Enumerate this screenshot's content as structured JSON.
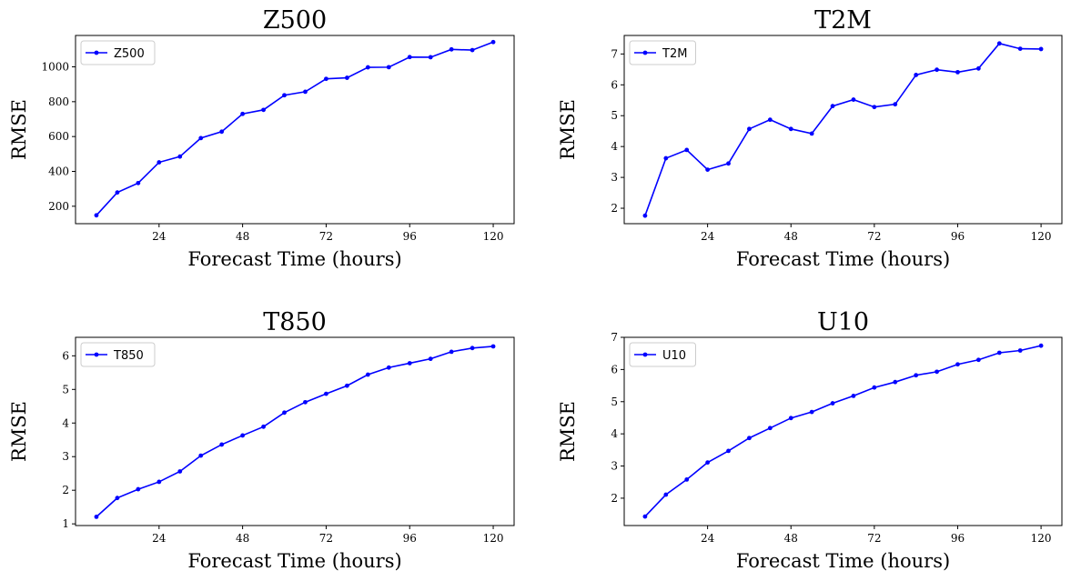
{
  "figure": {
    "line_color": "#0000ff",
    "marker": "dot"
  },
  "chart_data": [
    {
      "type": "line",
      "title": "Z500",
      "xlabel": "Forecast Time (hours)",
      "ylabel": "RMSE",
      "xlim": [
        0,
        126
      ],
      "ylim": [
        100,
        1180
      ],
      "xticks": [
        24,
        48,
        72,
        96,
        120
      ],
      "yticks": [
        200,
        400,
        600,
        800,
        1000
      ],
      "legend": "upper-left",
      "grid": false,
      "series": [
        {
          "name": "Z500",
          "x": [
            6,
            12,
            18,
            24,
            30,
            36,
            42,
            48,
            54,
            60,
            66,
            72,
            78,
            84,
            90,
            96,
            102,
            108,
            114,
            120
          ],
          "y": [
            148,
            279,
            333,
            452,
            485,
            591,
            628,
            730,
            753,
            837,
            857,
            931,
            937,
            997,
            998,
            1056,
            1055,
            1100,
            1096,
            1142
          ]
        }
      ]
    },
    {
      "type": "line",
      "title": "T2M",
      "xlabel": "Forecast Time (hours)",
      "ylabel": "RMSE",
      "xlim": [
        0,
        126
      ],
      "ylim": [
        1.5,
        7.6
      ],
      "xticks": [
        24,
        48,
        72,
        96,
        120
      ],
      "yticks": [
        2,
        3,
        4,
        5,
        6,
        7
      ],
      "legend": "upper-left",
      "grid": false,
      "series": [
        {
          "name": "T2M",
          "x": [
            6,
            12,
            18,
            24,
            30,
            36,
            42,
            48,
            54,
            60,
            66,
            72,
            78,
            84,
            90,
            96,
            102,
            108,
            114,
            120
          ],
          "y": [
            1.76,
            3.62,
            3.89,
            3.25,
            3.45,
            4.57,
            4.87,
            4.57,
            4.42,
            5.31,
            5.52,
            5.28,
            5.37,
            6.32,
            6.49,
            6.41,
            6.53,
            7.34,
            7.17,
            7.16
          ]
        }
      ]
    },
    {
      "type": "line",
      "title": "T850",
      "xlabel": "Forecast Time (hours)",
      "ylabel": "RMSE",
      "xlim": [
        0,
        126
      ],
      "ylim": [
        0.95,
        6.55
      ],
      "xticks": [
        24,
        48,
        72,
        96,
        120
      ],
      "yticks": [
        1,
        2,
        3,
        4,
        5,
        6
      ],
      "legend": "upper-left",
      "grid": false,
      "series": [
        {
          "name": "T850",
          "x": [
            6,
            12,
            18,
            24,
            30,
            36,
            42,
            48,
            54,
            60,
            66,
            72,
            78,
            84,
            90,
            96,
            102,
            108,
            114,
            120
          ],
          "y": [
            1.21,
            1.77,
            2.03,
            2.25,
            2.56,
            3.03,
            3.36,
            3.63,
            3.89,
            4.31,
            4.62,
            4.87,
            5.11,
            5.44,
            5.65,
            5.78,
            5.91,
            6.12,
            6.23,
            6.28
          ]
        }
      ]
    },
    {
      "type": "line",
      "title": "U10",
      "xlabel": "Forecast Time (hours)",
      "ylabel": "RMSE",
      "xlim": [
        0,
        126
      ],
      "ylim": [
        1.15,
        7.0
      ],
      "xticks": [
        24,
        48,
        72,
        96,
        120
      ],
      "yticks": [
        2,
        3,
        4,
        5,
        6,
        7
      ],
      "legend": "upper-left",
      "grid": false,
      "series": [
        {
          "name": "U10",
          "x": [
            6,
            12,
            18,
            24,
            30,
            36,
            42,
            48,
            54,
            60,
            66,
            72,
            78,
            84,
            90,
            96,
            102,
            108,
            114,
            120
          ],
          "y": [
            1.43,
            2.11,
            2.58,
            3.11,
            3.47,
            3.87,
            4.18,
            4.49,
            4.68,
            4.95,
            5.18,
            5.44,
            5.61,
            5.82,
            5.93,
            6.16,
            6.3,
            6.52,
            6.59,
            6.74
          ]
        }
      ]
    }
  ]
}
